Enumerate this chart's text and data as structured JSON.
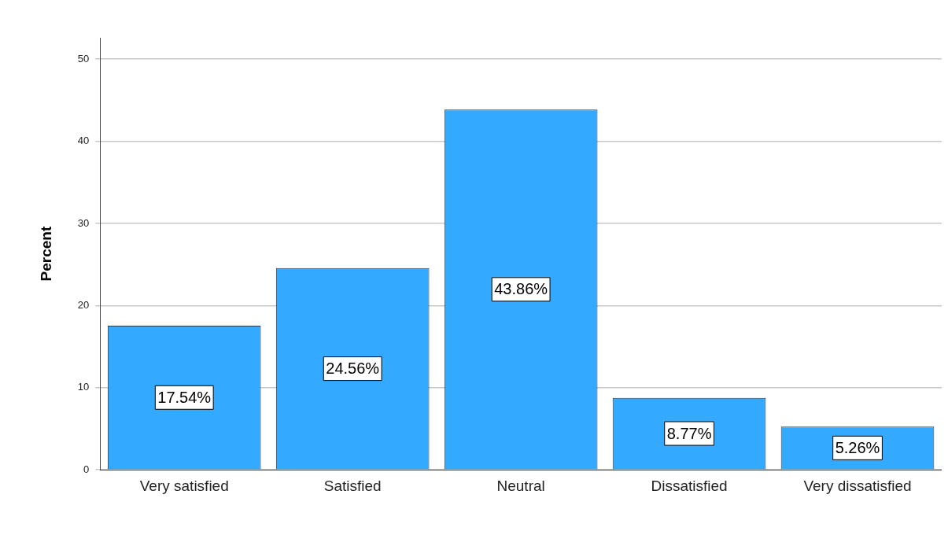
{
  "chart_data": {
    "type": "bar",
    "ylabel": "Percent",
    "categories": [
      "Very satisfied",
      "Satisfied",
      "Neutral",
      "Dissatisfied",
      "Very dissatisfied"
    ],
    "values": [
      17.54,
      24.56,
      43.86,
      8.77,
      5.26
    ],
    "value_labels": [
      "17.54%",
      "24.56%",
      "43.86%",
      "8.77%",
      "5.26%"
    ],
    "color": "#33aaff",
    "ylim": [
      0,
      52.6
    ],
    "yticks": [
      0,
      10,
      20,
      30,
      40,
      50
    ],
    "grid": "y"
  }
}
